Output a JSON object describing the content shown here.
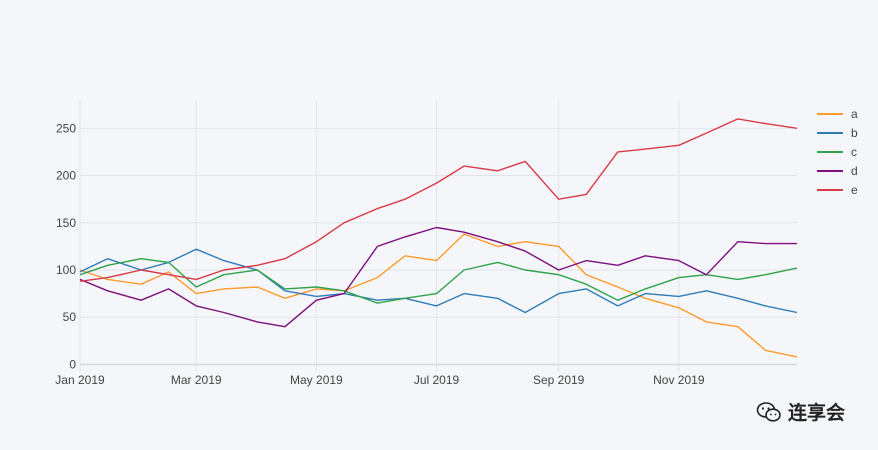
{
  "chart_data": {
    "type": "line",
    "x_axis": {
      "tick_labels": [
        "Jan 2019",
        "Mar 2019",
        "May 2019",
        "Jul 2019",
        "Sep 2019",
        "Nov 2019"
      ],
      "tick_dates": [
        "2019-01-01",
        "2019-03-01",
        "2019-05-01",
        "2019-07-01",
        "2019-09-01",
        "2019-11-01"
      ],
      "range": [
        "2019-01-01",
        "2019-12-31"
      ]
    },
    "y_axis": {
      "tick_labels": [
        "0",
        "50",
        "100",
        "150",
        "200",
        "250"
      ],
      "tick_values": [
        0,
        50,
        100,
        150,
        200,
        250
      ],
      "range": [
        -8,
        280
      ]
    },
    "grid": true,
    "legend": "right",
    "colors": {
      "a": "#ff9a2f",
      "b": "#2e7cb8",
      "c": "#2fa24a",
      "d": "#7b0f7b",
      "e": "#d93a47",
      "grid": "#e2e4ec",
      "zero": "#d6d8de",
      "background": "#f5f6fa"
    },
    "series": [
      {
        "name": "a",
        "x": [
          "2019-01-01",
          "2019-01-15",
          "2019-02-01",
          "2019-02-15",
          "2019-03-01",
          "2019-03-15",
          "2019-04-01",
          "2019-04-15",
          "2019-05-01",
          "2019-05-15",
          "2019-06-01",
          "2019-06-15",
          "2019-07-01",
          "2019-07-15",
          "2019-08-01",
          "2019-08-15",
          "2019-09-01",
          "2019-09-15",
          "2019-10-01",
          "2019-10-15",
          "2019-11-01",
          "2019-11-15",
          "2019-12-01",
          "2019-12-15",
          "2019-12-31"
        ],
        "values": [
          100,
          90,
          85,
          98,
          75,
          80,
          82,
          70,
          80,
          78,
          92,
          115,
          110,
          138,
          125,
          130,
          125,
          95,
          82,
          70,
          60,
          45,
          40,
          15,
          8
        ]
      },
      {
        "name": "b",
        "x": [
          "2019-01-01",
          "2019-01-15",
          "2019-02-01",
          "2019-02-15",
          "2019-03-01",
          "2019-03-15",
          "2019-04-01",
          "2019-04-15",
          "2019-05-01",
          "2019-05-15",
          "2019-06-01",
          "2019-06-15",
          "2019-07-01",
          "2019-07-15",
          "2019-08-01",
          "2019-08-15",
          "2019-09-01",
          "2019-09-15",
          "2019-10-01",
          "2019-10-15",
          "2019-11-01",
          "2019-11-15",
          "2019-12-01",
          "2019-12-15",
          "2019-12-31"
        ],
        "values": [
          98,
          112,
          100,
          108,
          122,
          110,
          100,
          78,
          72,
          75,
          68,
          70,
          62,
          75,
          70,
          55,
          75,
          80,
          62,
          75,
          72,
          78,
          70,
          62,
          55
        ]
      },
      {
        "name": "c",
        "x": [
          "2019-01-01",
          "2019-01-15",
          "2019-02-01",
          "2019-02-15",
          "2019-03-01",
          "2019-03-15",
          "2019-04-01",
          "2019-04-15",
          "2019-05-01",
          "2019-05-15",
          "2019-06-01",
          "2019-06-15",
          "2019-07-01",
          "2019-07-15",
          "2019-08-01",
          "2019-08-15",
          "2019-09-01",
          "2019-09-15",
          "2019-10-01",
          "2019-10-15",
          "2019-11-01",
          "2019-11-15",
          "2019-12-01",
          "2019-12-15",
          "2019-12-31"
        ],
        "values": [
          95,
          105,
          112,
          108,
          82,
          95,
          100,
          80,
          82,
          78,
          65,
          70,
          75,
          100,
          108,
          100,
          95,
          85,
          68,
          80,
          92,
          95,
          90,
          95,
          102
        ]
      },
      {
        "name": "d",
        "x": [
          "2019-01-01",
          "2019-01-15",
          "2019-02-01",
          "2019-02-15",
          "2019-03-01",
          "2019-03-15",
          "2019-04-01",
          "2019-04-15",
          "2019-05-01",
          "2019-05-15",
          "2019-06-01",
          "2019-06-15",
          "2019-07-01",
          "2019-07-15",
          "2019-08-01",
          "2019-08-15",
          "2019-09-01",
          "2019-09-15",
          "2019-10-01",
          "2019-10-15",
          "2019-11-01",
          "2019-11-15",
          "2019-12-01",
          "2019-12-15",
          "2019-12-31"
        ],
        "values": [
          90,
          78,
          68,
          80,
          62,
          55,
          45,
          40,
          68,
          75,
          125,
          135,
          145,
          140,
          130,
          120,
          100,
          110,
          105,
          115,
          110,
          95,
          130,
          128,
          128
        ]
      },
      {
        "name": "e",
        "x": [
          "2019-01-01",
          "2019-01-15",
          "2019-02-01",
          "2019-02-15",
          "2019-03-01",
          "2019-03-15",
          "2019-04-01",
          "2019-04-15",
          "2019-05-01",
          "2019-05-15",
          "2019-06-01",
          "2019-06-15",
          "2019-07-01",
          "2019-07-15",
          "2019-08-01",
          "2019-08-15",
          "2019-09-01",
          "2019-09-15",
          "2019-10-01",
          "2019-10-15",
          "2019-11-01",
          "2019-11-15",
          "2019-12-01",
          "2019-12-15",
          "2019-12-31"
        ],
        "values": [
          88,
          92,
          100,
          95,
          90,
          100,
          105,
          112,
          130,
          150,
          165,
          175,
          192,
          210,
          205,
          215,
          175,
          180,
          225,
          228,
          232,
          245,
          260,
          255,
          250
        ]
      }
    ]
  },
  "watermark": {
    "text": "连享会",
    "icon": "wechat-icon"
  }
}
